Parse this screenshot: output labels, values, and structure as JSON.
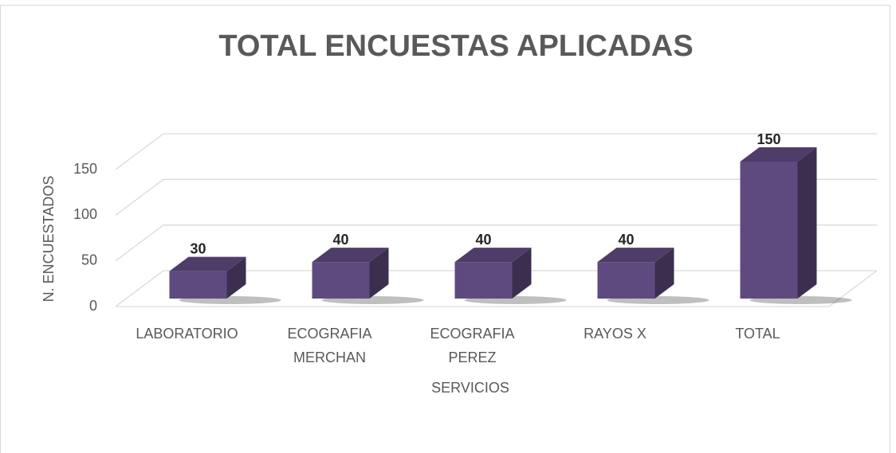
{
  "chart_data": {
    "type": "bar3d",
    "title": "TOTAL ENCUESTAS APLICADAS",
    "categories": [
      "LABORATORIO",
      "ECOGRAFIA MERCHAN",
      "ECOGRAFIA PEREZ",
      "RAYOS X",
      "TOTAL"
    ],
    "values": [
      30,
      40,
      40,
      40,
      150
    ],
    "color": "#5f4a7f",
    "ylim": [
      0,
      150
    ],
    "yticks": [
      0,
      50,
      100,
      150
    ],
    "grid": true,
    "xlabel": "SERVICIOS",
    "ylabel": "N. ENCUESTADOS"
  }
}
